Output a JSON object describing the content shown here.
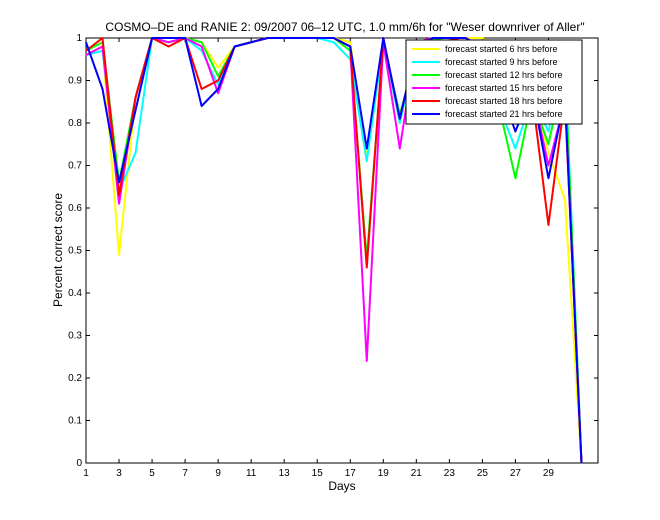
{
  "chart_data": {
    "type": "line",
    "title": "COSMO–DE and RANIE 2: 09/2007 06–12 UTC, 1.0 mm/6h for \"Weser downriver of Aller\"",
    "xlabel": "Days",
    "ylabel": "Percent correct score",
    "xlim": [
      1,
      32
    ],
    "ylim": [
      0,
      1
    ],
    "xticks": [
      "1",
      "3",
      "5",
      "7",
      "9",
      "11",
      "13",
      "15",
      "17",
      "19",
      "21",
      "23",
      "25",
      "27",
      "29"
    ],
    "yticks": [
      "0",
      "0.1",
      "0.2",
      "0.3",
      "0.4",
      "0.5",
      "0.6",
      "0.7",
      "0.8",
      "0.9",
      "1"
    ],
    "legend_position": "top-right",
    "grid": false,
    "x": [
      1,
      2,
      3,
      4,
      5,
      6,
      7,
      8,
      9,
      10,
      11,
      12,
      13,
      14,
      15,
      16,
      17,
      18,
      19,
      20,
      21,
      22,
      23,
      24,
      25,
      26,
      27,
      28,
      29,
      30,
      31
    ],
    "series": [
      {
        "name": "forecast started 6 hrs before",
        "color": "#ffff00",
        "values": [
          0.96,
          0.98,
          0.49,
          0.86,
          1.0,
          0.99,
          1.0,
          0.99,
          0.93,
          0.98,
          0.99,
          1.0,
          1.0,
          1.0,
          1.0,
          1.0,
          0.99,
          0.72,
          0.99,
          0.8,
          0.96,
          1.0,
          1.0,
          1.0,
          1.0,
          0.97,
          0.88,
          0.88,
          0.73,
          0.62,
          0.0
        ]
      },
      {
        "name": "forecast started 9 hrs before",
        "color": "#00ffff",
        "values": [
          0.96,
          0.97,
          0.64,
          0.73,
          1.0,
          0.99,
          1.0,
          0.97,
          0.89,
          0.98,
          0.99,
          1.0,
          1.0,
          1.0,
          1.0,
          0.99,
          0.95,
          0.71,
          0.99,
          0.8,
          0.97,
          1.0,
          1.0,
          0.89,
          0.93,
          0.84,
          0.74,
          0.86,
          0.78,
          0.95,
          0.0
        ]
      },
      {
        "name": "forecast started 12 hrs before",
        "color": "#00ff00",
        "values": [
          0.97,
          0.99,
          0.66,
          0.86,
          1.0,
          0.99,
          1.0,
          0.99,
          0.91,
          0.98,
          0.99,
          1.0,
          1.0,
          1.0,
          1.0,
          1.0,
          0.97,
          0.48,
          0.99,
          0.82,
          0.96,
          1.0,
          0.99,
          0.97,
          0.94,
          0.84,
          0.67,
          0.86,
          0.75,
          0.93,
          0.0
        ]
      },
      {
        "name": "forecast started 15 hrs before",
        "color": "#ff00ff",
        "values": [
          0.96,
          0.98,
          0.61,
          0.86,
          1.0,
          0.99,
          1.0,
          0.98,
          0.87,
          0.98,
          0.99,
          1.0,
          1.0,
          1.0,
          1.0,
          1.0,
          0.98,
          0.24,
          0.99,
          0.74,
          0.99,
          1.0,
          1.0,
          1.0,
          0.98,
          0.92,
          0.88,
          0.88,
          0.7,
          0.85,
          0.0
        ]
      },
      {
        "name": "forecast started 18 hrs before",
        "color": "#ff0000",
        "values": [
          0.97,
          1.0,
          0.63,
          0.86,
          1.0,
          0.98,
          1.0,
          0.88,
          0.9,
          0.98,
          0.99,
          1.0,
          1.0,
          1.0,
          1.0,
          1.0,
          0.98,
          0.46,
          1.0,
          0.81,
          0.98,
          1.0,
          1.0,
          0.99,
          0.97,
          0.93,
          0.95,
          0.87,
          0.56,
          0.86,
          0.0
        ]
      },
      {
        "name": "forecast started 21 hrs before",
        "color": "#0000ff",
        "values": [
          0.99,
          0.88,
          0.66,
          0.83,
          1.0,
          1.0,
          1.0,
          0.84,
          0.88,
          0.98,
          0.99,
          1.0,
          1.0,
          1.0,
          1.0,
          1.0,
          0.98,
          0.74,
          1.0,
          0.81,
          0.98,
          1.0,
          1.0,
          1.0,
          0.97,
          0.89,
          0.78,
          0.88,
          0.67,
          0.86,
          0.0
        ]
      }
    ]
  }
}
